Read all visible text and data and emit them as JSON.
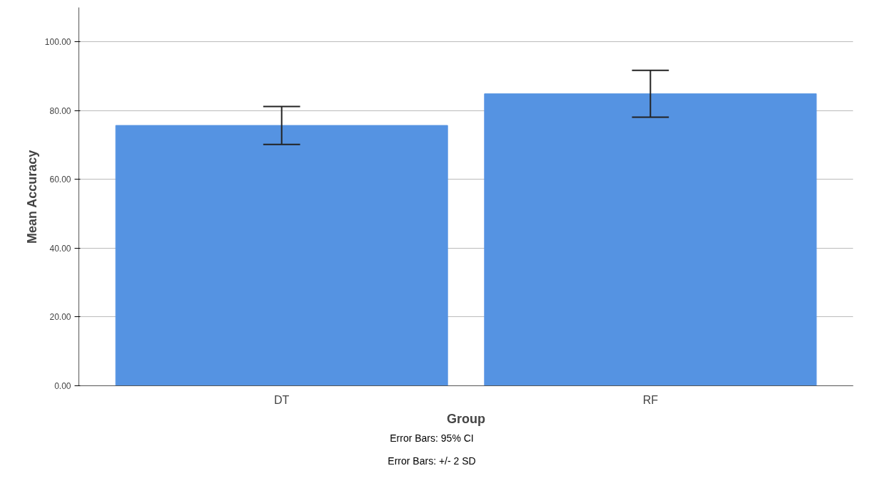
{
  "chart_data": {
    "type": "bar",
    "categories": [
      "DT",
      "RF"
    ],
    "values": [
      75.7,
      84.9
    ],
    "color": "#5593e2",
    "errors": [
      [
        70.2,
        81.2
      ],
      [
        78.1,
        91.7
      ]
    ],
    "xlabel": "Group",
    "ylabel": "Mean Accuracy",
    "ylim": [
      0,
      110
    ],
    "yticks": [
      {
        "value": 0,
        "label": "0.00"
      },
      {
        "value": 20,
        "label": "20.00"
      },
      {
        "value": 40,
        "label": "40.00"
      },
      {
        "value": 60,
        "label": "60.00"
      },
      {
        "value": 80,
        "label": "80.00"
      },
      {
        "value": 100,
        "label": "100.00"
      }
    ],
    "grid": "y",
    "annotations": [
      "Error Bars: 95% CI",
      "Error Bars: +/- 2 SD"
    ]
  }
}
